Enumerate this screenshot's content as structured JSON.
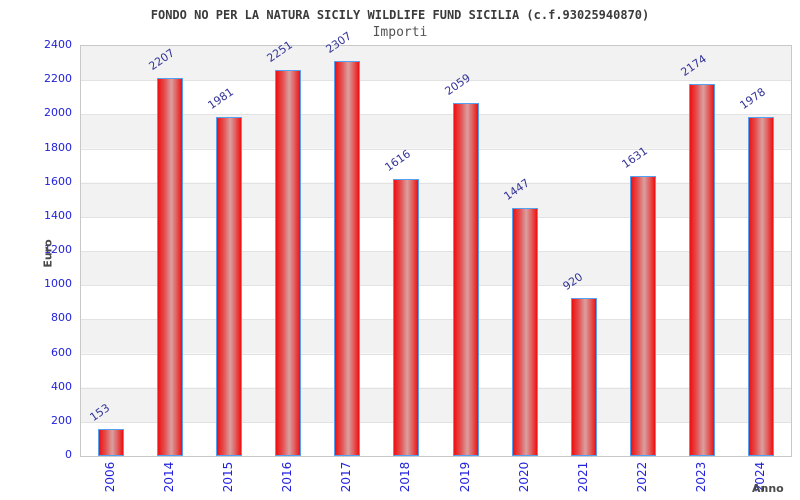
{
  "title": "FONDO NO PER LA NATURA SICILY WILDLIFE FUND SICILIA (c.f.93025940870)",
  "subtitle": "Importi",
  "chart_data": {
    "type": "bar",
    "categories": [
      "2006",
      "2014",
      "2015",
      "2016",
      "2017",
      "2018",
      "2019",
      "2020",
      "2021",
      "2022",
      "2023",
      "2024"
    ],
    "values": [
      153,
      2207,
      1981,
      2251,
      2307,
      1616,
      2059,
      1447,
      920,
      1631,
      2174,
      1978
    ],
    "title": "FONDO NO PER LA NATURA SICILY WILDLIFE FUND SICILIA (c.f.93025940870)",
    "subtitle": "Importi",
    "xlabel": "Anno",
    "ylabel": "Euro",
    "ylim": [
      0,
      2400
    ],
    "ytick_step": 200,
    "yticks": [
      0,
      200,
      400,
      600,
      800,
      1000,
      1200,
      1400,
      1600,
      1800,
      2000,
      2200,
      2400
    ],
    "grid": true,
    "legend": false,
    "band_colors": [
      "#ffffff",
      "#f2f2f2"
    ],
    "bar_edge_color": "#ee1010",
    "bar_highlight_color": "#d9a0a0",
    "bar_border_color": "#55a0f0",
    "tick_label_color": "#2222dd",
    "value_label_color": "#333399",
    "title_color": "#3b3b3b"
  }
}
